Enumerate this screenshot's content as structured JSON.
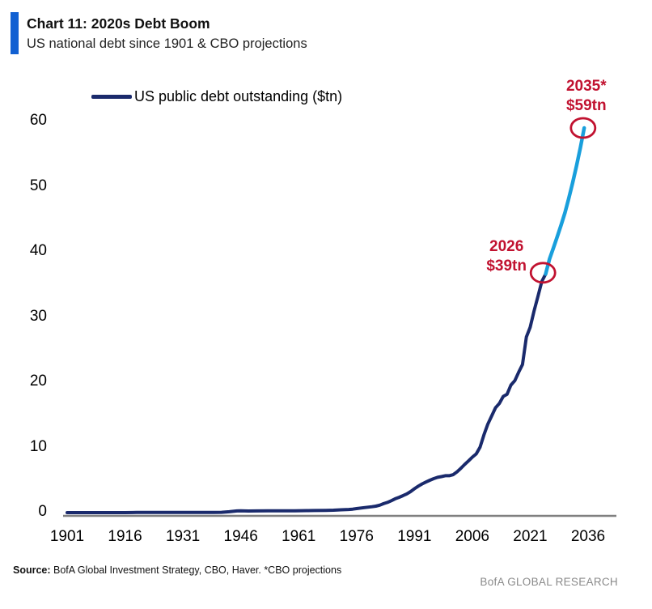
{
  "header": {
    "title": "Chart 11: 2020s Debt Boom",
    "subtitle": "US national debt since 1901 & CBO projections",
    "accent_color": "#1160d2"
  },
  "legend": {
    "label": "US public debt outstanding ($tn)"
  },
  "footer": {
    "source_label": "Source:",
    "source_text": " BofA Global Investment Strategy, CBO, Haver. *CBO projections",
    "brand": "BofA GLOBAL RESEARCH"
  },
  "chart_data": {
    "type": "line",
    "title": "Chart 11: 2020s Debt Boom",
    "subtitle": "US national debt since 1901 & CBO projections",
    "xlabel": "",
    "ylabel": "US public debt outstanding ($tn)",
    "xlim": [
      1901,
      2043
    ],
    "ylim": [
      0,
      62
    ],
    "x_ticks": [
      1901,
      1916,
      1931,
      1946,
      1961,
      1976,
      1991,
      2006,
      2021,
      2036
    ],
    "y_ticks": [
      0,
      10,
      20,
      30,
      40,
      50,
      60
    ],
    "grid": false,
    "legend_position": "top-left",
    "colors": {
      "historical": "#1a2a6c",
      "projection": "#199fdc",
      "annotation": "#c11230",
      "axis": "#808080"
    },
    "series": [
      {
        "name": "US public debt outstanding ($tn)",
        "role": "historical",
        "color": "#1a2a6c",
        "points": [
          [
            1901,
            0.0
          ],
          [
            1905,
            0.0
          ],
          [
            1910,
            0.0
          ],
          [
            1914,
            0.0
          ],
          [
            1916,
            0.0
          ],
          [
            1918,
            0.01
          ],
          [
            1919,
            0.03
          ],
          [
            1920,
            0.03
          ],
          [
            1923,
            0.02
          ],
          [
            1925,
            0.02
          ],
          [
            1930,
            0.02
          ],
          [
            1933,
            0.02
          ],
          [
            1936,
            0.03
          ],
          [
            1939,
            0.04
          ],
          [
            1941,
            0.05
          ],
          [
            1943,
            0.14
          ],
          [
            1945,
            0.26
          ],
          [
            1946,
            0.27
          ],
          [
            1948,
            0.25
          ],
          [
            1950,
            0.26
          ],
          [
            1953,
            0.27
          ],
          [
            1955,
            0.27
          ],
          [
            1958,
            0.28
          ],
          [
            1960,
            0.29
          ],
          [
            1963,
            0.31
          ],
          [
            1965,
            0.32
          ],
          [
            1968,
            0.35
          ],
          [
            1970,
            0.37
          ],
          [
            1972,
            0.43
          ],
          [
            1974,
            0.48
          ],
          [
            1975,
            0.53
          ],
          [
            1976,
            0.62
          ],
          [
            1978,
            0.77
          ],
          [
            1980,
            0.91
          ],
          [
            1981,
            1.0
          ],
          [
            1982,
            1.14
          ],
          [
            1983,
            1.38
          ],
          [
            1984,
            1.57
          ],
          [
            1985,
            1.82
          ],
          [
            1986,
            2.12
          ],
          [
            1987,
            2.35
          ],
          [
            1988,
            2.6
          ],
          [
            1989,
            2.87
          ],
          [
            1990,
            3.23
          ],
          [
            1991,
            3.67
          ],
          [
            1992,
            4.06
          ],
          [
            1993,
            4.41
          ],
          [
            1994,
            4.69
          ],
          [
            1995,
            4.97
          ],
          [
            1996,
            5.22
          ],
          [
            1997,
            5.41
          ],
          [
            1998,
            5.53
          ],
          [
            1999,
            5.66
          ],
          [
            2000,
            5.67
          ],
          [
            2001,
            5.81
          ],
          [
            2002,
            6.23
          ],
          [
            2003,
            6.78
          ],
          [
            2004,
            7.38
          ],
          [
            2005,
            7.93
          ],
          [
            2006,
            8.51
          ],
          [
            2007,
            9.01
          ],
          [
            2008,
            10.02
          ],
          [
            2009,
            11.91
          ],
          [
            2010,
            13.56
          ],
          [
            2011,
            14.79
          ],
          [
            2012,
            16.07
          ],
          [
            2013,
            16.74
          ],
          [
            2014,
            17.82
          ],
          [
            2015,
            18.15
          ],
          [
            2016,
            19.57
          ],
          [
            2017,
            20.24
          ],
          [
            2018,
            21.52
          ],
          [
            2019,
            22.72
          ],
          [
            2020,
            26.95
          ],
          [
            2021,
            28.43
          ],
          [
            2022,
            30.93
          ],
          [
            2023,
            33.17
          ],
          [
            2024,
            35.46
          ],
          [
            2025,
            36.6
          ]
        ]
      },
      {
        "name": "CBO projections",
        "role": "projection",
        "color": "#199fdc",
        "points": [
          [
            2025,
            36.6
          ],
          [
            2026,
            38.9
          ],
          [
            2027,
            40.6
          ],
          [
            2028,
            42.3
          ],
          [
            2029,
            44.1
          ],
          [
            2030,
            46.0
          ],
          [
            2031,
            48.2
          ],
          [
            2032,
            50.6
          ],
          [
            2033,
            53.2
          ],
          [
            2034,
            56.0
          ],
          [
            2035,
            59.0
          ]
        ]
      }
    ],
    "annotations": [
      {
        "lines": [
          "2026",
          "$39tn"
        ],
        "year": 2024.3,
        "value": 36.8
      },
      {
        "lines": [
          "2035*",
          "$59tn"
        ],
        "year": 2034.7,
        "value": 59.0
      }
    ]
  }
}
